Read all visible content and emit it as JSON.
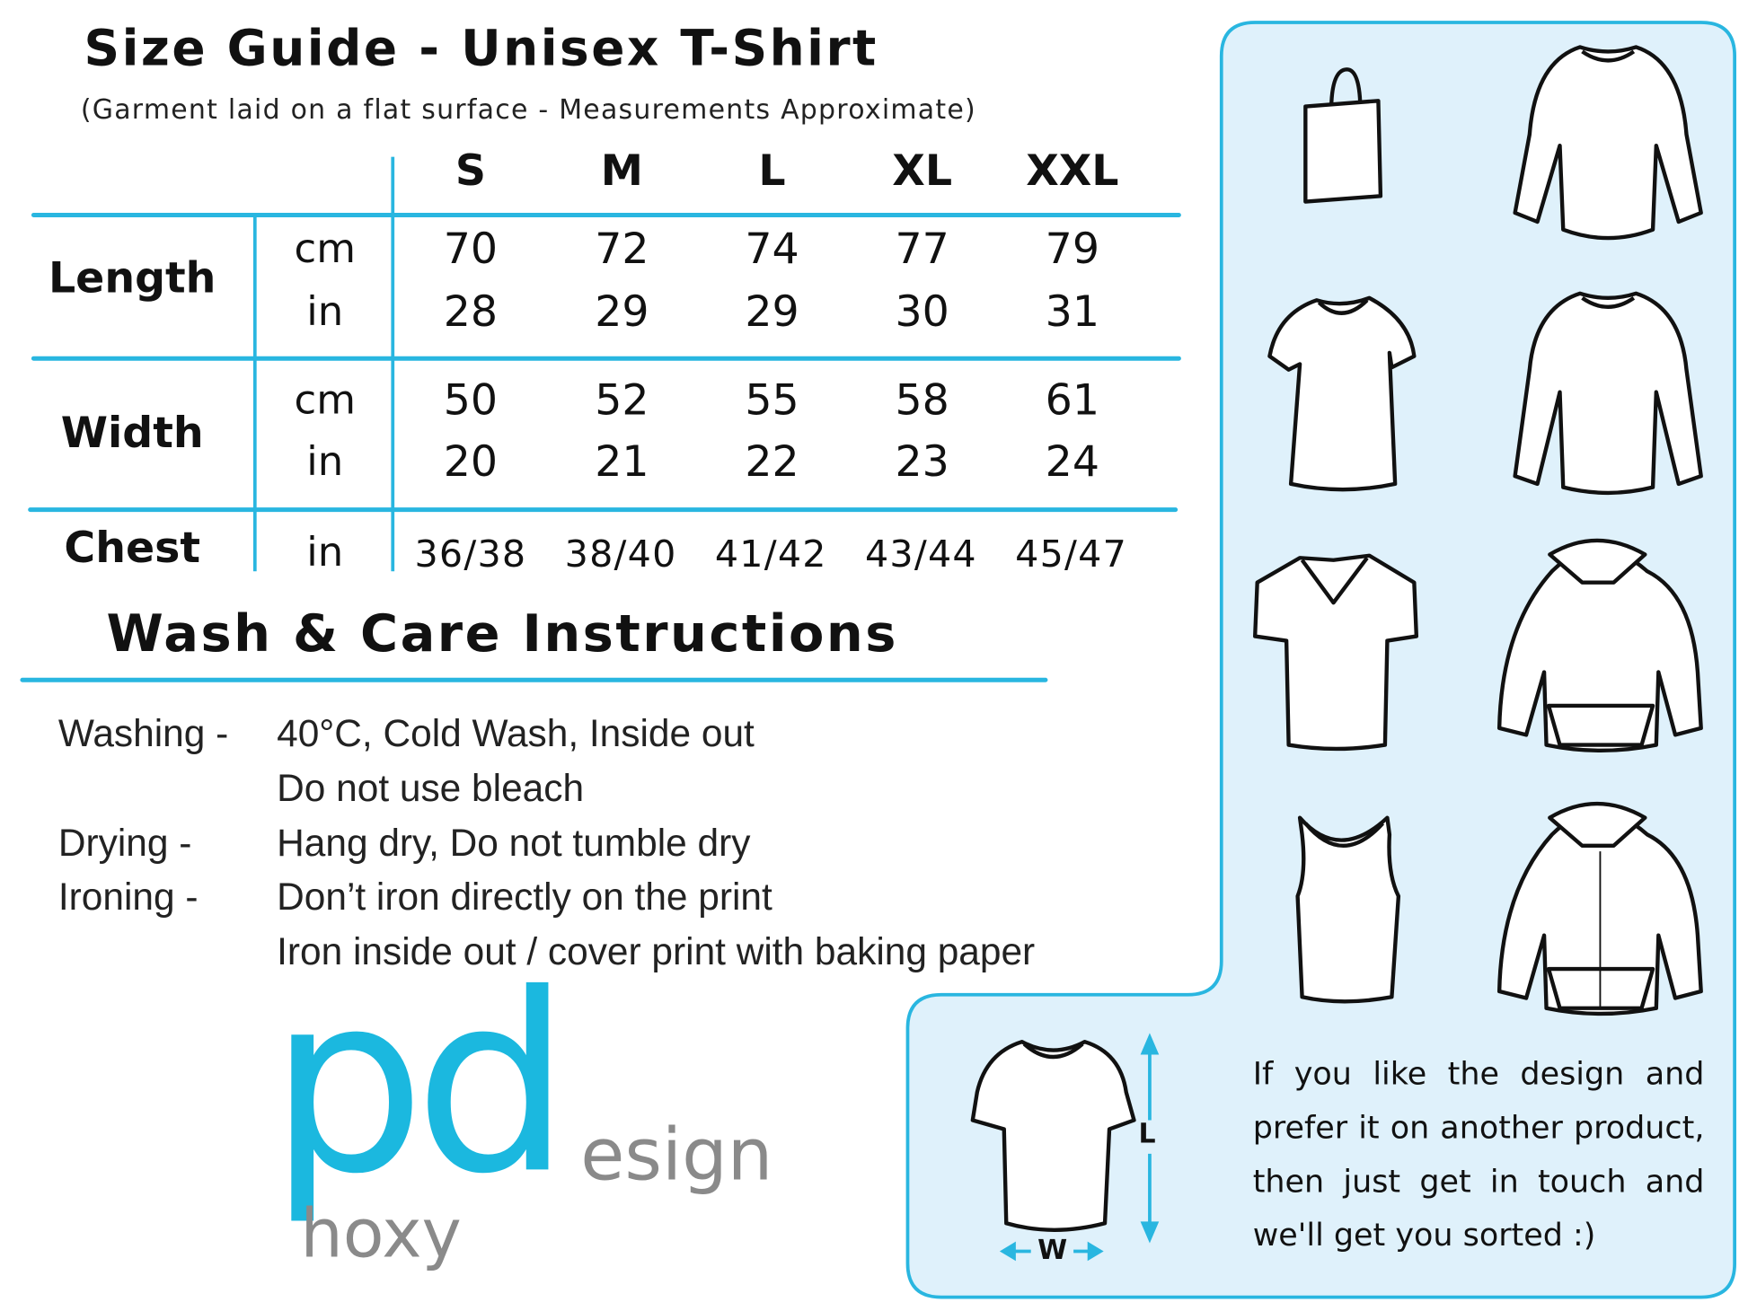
{
  "header": {
    "title": "Size Guide - Unisex T-Shirt",
    "subtitle": "(Garment laid on a flat surface - Measurements Approximate)"
  },
  "size_table": {
    "sizes": [
      "S",
      "M",
      "L",
      "XL",
      "XXL"
    ],
    "rows": [
      {
        "label": "Length",
        "units": [
          {
            "unit": "cm",
            "values": [
              "70",
              "72",
              "74",
              "77",
              "79"
            ]
          },
          {
            "unit": "in",
            "values": [
              "28",
              "29",
              "29",
              "30",
              "31"
            ]
          }
        ]
      },
      {
        "label": "Width",
        "units": [
          {
            "unit": "cm",
            "values": [
              "50",
              "52",
              "55",
              "58",
              "61"
            ]
          },
          {
            "unit": "in",
            "values": [
              "20",
              "21",
              "22",
              "23",
              "24"
            ]
          }
        ]
      },
      {
        "label": "Chest",
        "units": [
          {
            "unit": "in",
            "values": [
              "36/38",
              "38/40",
              "41/42",
              "43/44",
              "45/47"
            ]
          }
        ]
      }
    ]
  },
  "care": {
    "heading": "Wash & Care Instructions",
    "rows": [
      {
        "label": "Washing -",
        "value": "40°C, Cold Wash, Inside out"
      },
      {
        "label": "",
        "value": "Do not use bleach"
      },
      {
        "label": "Drying -",
        "value": "Hang dry, Do not tumble dry"
      },
      {
        "label": "Ironing -",
        "value": "Don’t iron directly on the print"
      },
      {
        "label": "",
        "value": "Iron inside out / cover print with baking paper"
      }
    ]
  },
  "logo": {
    "pd": "pd",
    "esign": "esign",
    "hoxy": "hoxy"
  },
  "panel": {
    "products": [
      "tote-bag",
      "long-sleeve-tee",
      "womens-tee",
      "sweatshirt",
      "v-neck-tee",
      "hoodie",
      "tank-top",
      "zip-hoodie"
    ],
    "diagram": {
      "length_label": "L",
      "width_label": "W"
    },
    "note_lines": [
      "If you like the design and",
      "prefer it on another product,",
      "then just get in touch and",
      "we'll get you sorted :)"
    ]
  },
  "colors": {
    "accent": "#29b6e0",
    "panel_bg": "#dff1fb",
    "logo_blue": "#1bb8df",
    "logo_gray": "#8a8a8a"
  }
}
